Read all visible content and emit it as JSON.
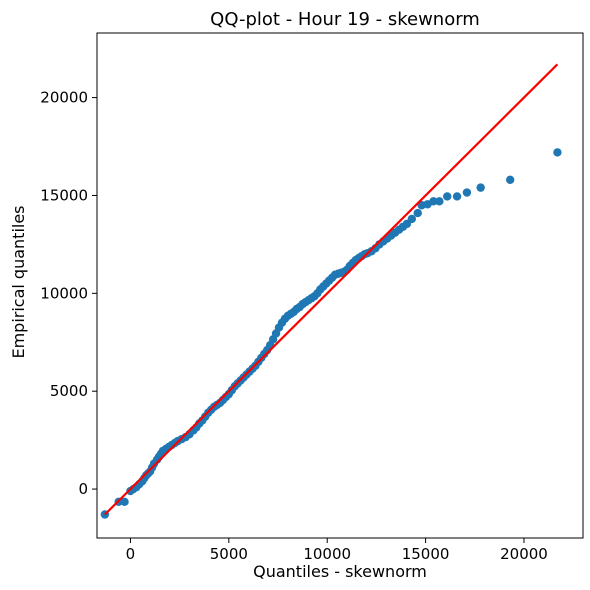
{
  "chart_data": {
    "type": "scatter",
    "title": "QQ-plot - Hour 19 - skewnorm",
    "xlabel": "Quantiles - skewnorm",
    "ylabel": "Empirical quantiles",
    "xlim": [
      -1700,
      23000
    ],
    "ylim": [
      -2500,
      23300
    ],
    "xticks": [
      0,
      5000,
      10000,
      15000,
      20000
    ],
    "yticks": [
      0,
      5000,
      10000,
      15000,
      20000
    ],
    "grid": false,
    "legend": "none",
    "marker_color": "#1f77b4",
    "line_color": "#ff0000",
    "reference_line": {
      "x": [
        -1300,
        21700
      ],
      "y": [
        -1300,
        21700
      ]
    },
    "points": [
      [
        -1300,
        -1300
      ],
      [
        -600,
        -650
      ],
      [
        -300,
        -650
      ],
      [
        0,
        -100
      ],
      [
        150,
        0
      ],
      [
        300,
        100
      ],
      [
        450,
        250
      ],
      [
        600,
        400
      ],
      [
        700,
        550
      ],
      [
        800,
        700
      ],
      [
        900,
        800
      ],
      [
        1000,
        900
      ],
      [
        1100,
        1100
      ],
      [
        1200,
        1300
      ],
      [
        1350,
        1500
      ],
      [
        1450,
        1650
      ],
      [
        1550,
        1800
      ],
      [
        1650,
        1950
      ],
      [
        1800,
        2050
      ],
      [
        1950,
        2150
      ],
      [
        2100,
        2250
      ],
      [
        2250,
        2350
      ],
      [
        2400,
        2450
      ],
      [
        2600,
        2550
      ],
      [
        2800,
        2650
      ],
      [
        3000,
        2800
      ],
      [
        3200,
        3000
      ],
      [
        3350,
        3150
      ],
      [
        3500,
        3350
      ],
      [
        3650,
        3500
      ],
      [
        3800,
        3700
      ],
      [
        3950,
        3900
      ],
      [
        4100,
        4050
      ],
      [
        4250,
        4200
      ],
      [
        4400,
        4300
      ],
      [
        4550,
        4400
      ],
      [
        4700,
        4550
      ],
      [
        4850,
        4700
      ],
      [
        5000,
        4850
      ],
      [
        5150,
        5050
      ],
      [
        5300,
        5250
      ],
      [
        5450,
        5400
      ],
      [
        5600,
        5550
      ],
      [
        5750,
        5700
      ],
      [
        5900,
        5850
      ],
      [
        6050,
        6000
      ],
      [
        6200,
        6150
      ],
      [
        6350,
        6300
      ],
      [
        6500,
        6500
      ],
      [
        6650,
        6700
      ],
      [
        6800,
        6900
      ],
      [
        6950,
        7100
      ],
      [
        7100,
        7350
      ],
      [
        7250,
        7650
      ],
      [
        7400,
        7950
      ],
      [
        7550,
        8250
      ],
      [
        7700,
        8500
      ],
      [
        7850,
        8700
      ],
      [
        8000,
        8850
      ],
      [
        8150,
        8950
      ],
      [
        8300,
        9050
      ],
      [
        8450,
        9200
      ],
      [
        8600,
        9300
      ],
      [
        8750,
        9450
      ],
      [
        8900,
        9550
      ],
      [
        9050,
        9650
      ],
      [
        9200,
        9750
      ],
      [
        9350,
        9850
      ],
      [
        9500,
        10000
      ],
      [
        9650,
        10200
      ],
      [
        9800,
        10350
      ],
      [
        9950,
        10500
      ],
      [
        10100,
        10650
      ],
      [
        10250,
        10800
      ],
      [
        10400,
        10950
      ],
      [
        10550,
        11000
      ],
      [
        10700,
        11050
      ],
      [
        10850,
        11100
      ],
      [
        11000,
        11200
      ],
      [
        11150,
        11400
      ],
      [
        11300,
        11550
      ],
      [
        11450,
        11700
      ],
      [
        11600,
        11800
      ],
      [
        11750,
        11900
      ],
      [
        11900,
        12000
      ],
      [
        12050,
        12050
      ],
      [
        12250,
        12150
      ],
      [
        12450,
        12300
      ],
      [
        12650,
        12500
      ],
      [
        12850,
        12650
      ],
      [
        13050,
        12800
      ],
      [
        13250,
        12950
      ],
      [
        13450,
        13100
      ],
      [
        13650,
        13250
      ],
      [
        13850,
        13400
      ],
      [
        14050,
        13550
      ],
      [
        14300,
        13800
      ],
      [
        14600,
        14100
      ],
      [
        14800,
        14500
      ],
      [
        15100,
        14550
      ],
      [
        15400,
        14700
      ],
      [
        15700,
        14700
      ],
      [
        16100,
        14950
      ],
      [
        16600,
        14950
      ],
      [
        17100,
        15150
      ],
      [
        17800,
        15400
      ],
      [
        19300,
        15800
      ],
      [
        21700,
        17200
      ]
    ]
  }
}
